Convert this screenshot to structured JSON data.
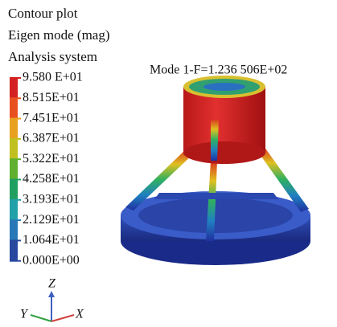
{
  "header": {
    "lines": [
      "Contour plot",
      "Eigen mode (mag)",
      "Analysis system"
    ]
  },
  "legend": {
    "labels": [
      "9.580 E+01",
      "8.515E+01",
      "7.451E+01",
      "6.387E+01",
      "5.322E+01",
      "4.258E+01",
      "3.193E+01",
      "2.129E+01",
      "1.064E+01",
      "0.000E+00"
    ]
  },
  "mode_label": "Mode 1-F=1.236 506E+02",
  "axes": {
    "z": "Z",
    "y": "Y",
    "x": "X"
  }
}
